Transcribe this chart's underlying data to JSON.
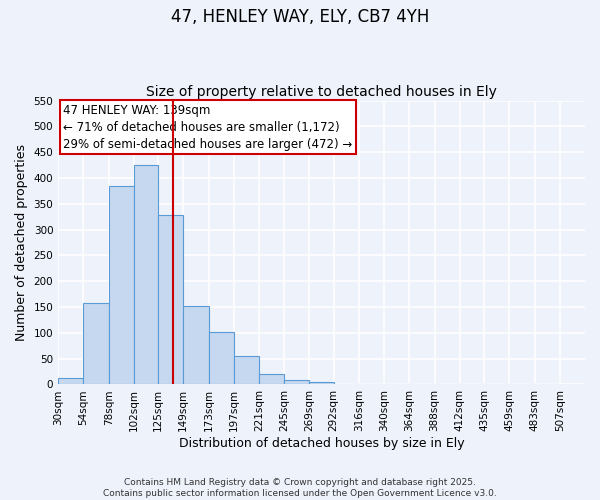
{
  "title": "47, HENLEY WAY, ELY, CB7 4YH",
  "subtitle": "Size of property relative to detached houses in Ely",
  "xlabel": "Distribution of detached houses by size in Ely",
  "ylabel": "Number of detached properties",
  "bar_left_edges": [
    30,
    54,
    78,
    102,
    125,
    149,
    173,
    197,
    221,
    245,
    269,
    292,
    316,
    340,
    364,
    388,
    412,
    435,
    459,
    483
  ],
  "bar_heights": [
    13,
    157,
    385,
    425,
    328,
    153,
    102,
    55,
    20,
    9,
    5,
    1,
    1,
    0,
    1,
    0,
    0,
    0,
    0,
    1
  ],
  "bar_widths": [
    24,
    24,
    24,
    23,
    24,
    24,
    24,
    24,
    24,
    24,
    23,
    24,
    24,
    24,
    24,
    24,
    23,
    24,
    24,
    24
  ],
  "tick_labels": [
    "30sqm",
    "54sqm",
    "78sqm",
    "102sqm",
    "125sqm",
    "149sqm",
    "173sqm",
    "197sqm",
    "221sqm",
    "245sqm",
    "269sqm",
    "292sqm",
    "316sqm",
    "340sqm",
    "364sqm",
    "388sqm",
    "412sqm",
    "435sqm",
    "459sqm",
    "483sqm",
    "507sqm"
  ],
  "tick_positions": [
    30,
    54,
    78,
    102,
    125,
    149,
    173,
    197,
    221,
    245,
    269,
    292,
    316,
    340,
    364,
    388,
    412,
    435,
    459,
    483,
    507
  ],
  "bar_color": "#c5d8f0",
  "bar_edge_color": "#5b9bd5",
  "background_color": "#eef2fb",
  "grid_color": "#ffffff",
  "vline_x": 139,
  "vline_color": "#cc0000",
  "annotation_line1": "47 HENLEY WAY: 139sqm",
  "annotation_line2": "← 71% of detached houses are smaller (1,172)",
  "annotation_line3": "29% of semi-detached houses are larger (472) →",
  "annotation_box_color": "#cc0000",
  "ylim": [
    0,
    550
  ],
  "yticks": [
    0,
    50,
    100,
    150,
    200,
    250,
    300,
    350,
    400,
    450,
    500,
    550
  ],
  "footer_line1": "Contains HM Land Registry data © Crown copyright and database right 2025.",
  "footer_line2": "Contains public sector information licensed under the Open Government Licence v3.0.",
  "title_fontsize": 12,
  "subtitle_fontsize": 10,
  "axis_label_fontsize": 9,
  "tick_fontsize": 7.5,
  "annotation_fontsize": 8.5,
  "footer_fontsize": 6.5
}
